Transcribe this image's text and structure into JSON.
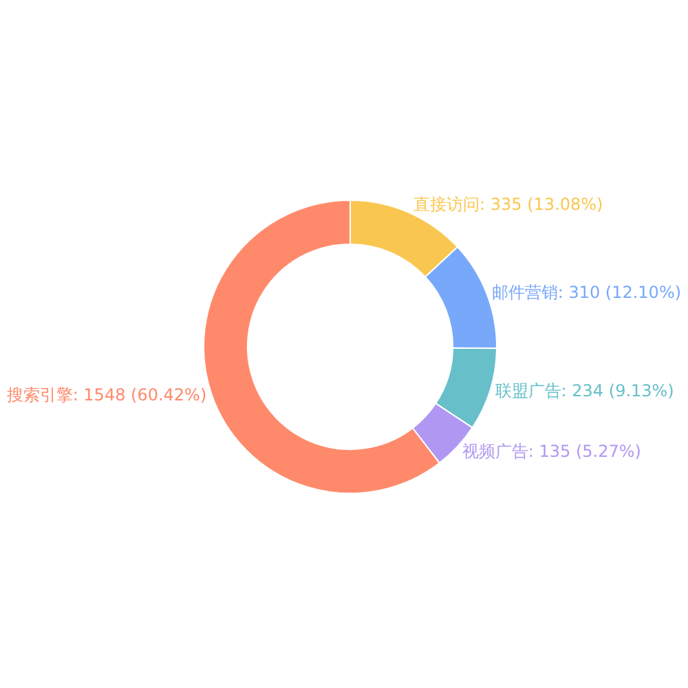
{
  "chart_data": {
    "type": "donut",
    "categories": [
      "直接访问",
      "邮件营销",
      "联盟广告",
      "视频广告",
      "搜索引擎"
    ],
    "values": [
      335,
      310,
      234,
      135,
      1548
    ],
    "colors": [
      "#f9c74f",
      "#78a8fa",
      "#67bfc9",
      "#b098f2",
      "#ff8a6b"
    ],
    "value_labels": [
      "335 (13.08%)",
      "310 (12.10%)",
      "234 (9.13%)",
      "135 (5.27%)",
      "1548 (60.42%)"
    ],
    "legend": false
  }
}
